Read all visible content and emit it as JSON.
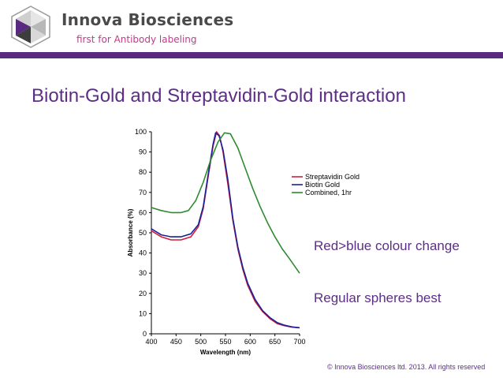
{
  "header": {
    "brand_name": "Innova Biosciences",
    "tagline": "first for Antibody labeling"
  },
  "slide": {
    "title": "Biotin-Gold and Streptavidin-Gold interaction",
    "notes": [
      "Red>blue colour change",
      "Regular spheres best"
    ],
    "copyright": "© Innova Biosciences ltd. 2013. All rights reserved"
  },
  "colors": {
    "brand_purple": "#5a2a82",
    "tagline_magenta": "#c03a8a",
    "logo_dark": "#3d3d3d"
  },
  "chart_data": {
    "type": "line",
    "xlabel": "Wavelength (nm)",
    "ylabel": "Absorbance (%)",
    "xlim": [
      400,
      700
    ],
    "ylim": [
      0,
      100
    ],
    "xticks": [
      "400",
      "450",
      "500",
      "550",
      "600",
      "650",
      "700"
    ],
    "yticks": [
      "0",
      "10",
      "20",
      "30",
      "40",
      "50",
      "60",
      "70",
      "80",
      "90",
      "100"
    ],
    "legend_position": "right",
    "series": [
      {
        "name": "Streptavidin Gold",
        "color": "#cc1f3a",
        "points": [
          [
            400,
            51
          ],
          [
            420,
            48
          ],
          [
            440,
            46.5
          ],
          [
            460,
            46.5
          ],
          [
            480,
            48
          ],
          [
            495,
            53
          ],
          [
            505,
            62
          ],
          [
            515,
            78
          ],
          [
            525,
            93
          ],
          [
            532,
            100
          ],
          [
            538,
            98
          ],
          [
            545,
            90
          ],
          [
            555,
            74
          ],
          [
            565,
            56
          ],
          [
            575,
            42
          ],
          [
            585,
            32
          ],
          [
            595,
            24
          ],
          [
            610,
            16
          ],
          [
            625,
            11
          ],
          [
            640,
            7.5
          ],
          [
            655,
            5
          ],
          [
            670,
            4
          ],
          [
            685,
            3.3
          ],
          [
            700,
            3
          ]
        ]
      },
      {
        "name": "Biotin Gold",
        "color": "#1f1f99",
        "points": [
          [
            400,
            52
          ],
          [
            420,
            49
          ],
          [
            440,
            48
          ],
          [
            460,
            48
          ],
          [
            480,
            49.5
          ],
          [
            495,
            54
          ],
          [
            505,
            63
          ],
          [
            515,
            79
          ],
          [
            525,
            94
          ],
          [
            530,
            99.5
          ],
          [
            537,
            98
          ],
          [
            545,
            91
          ],
          [
            555,
            76
          ],
          [
            565,
            57
          ],
          [
            575,
            43
          ],
          [
            585,
            33
          ],
          [
            595,
            25
          ],
          [
            610,
            17
          ],
          [
            625,
            11.5
          ],
          [
            640,
            8
          ],
          [
            655,
            5.5
          ],
          [
            670,
            4.2
          ],
          [
            685,
            3.4
          ],
          [
            700,
            3
          ]
        ]
      },
      {
        "name": "Combined, 1hr",
        "color": "#2e8b2e",
        "points": [
          [
            400,
            62.5
          ],
          [
            420,
            61
          ],
          [
            440,
            60
          ],
          [
            460,
            60
          ],
          [
            475,
            61
          ],
          [
            490,
            66
          ],
          [
            505,
            75
          ],
          [
            520,
            86
          ],
          [
            535,
            95
          ],
          [
            548,
            99.5
          ],
          [
            560,
            99
          ],
          [
            575,
            92
          ],
          [
            590,
            82
          ],
          [
            605,
            72
          ],
          [
            620,
            63
          ],
          [
            635,
            55
          ],
          [
            650,
            48
          ],
          [
            665,
            42
          ],
          [
            680,
            37
          ],
          [
            690,
            33.5
          ],
          [
            700,
            30
          ]
        ]
      }
    ]
  }
}
